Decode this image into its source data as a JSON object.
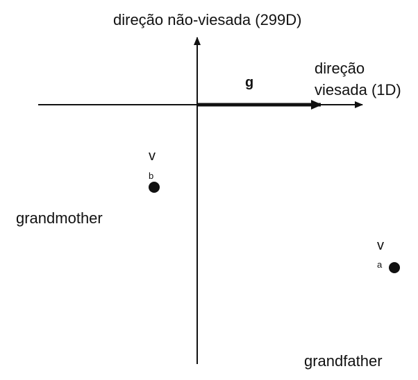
{
  "axes": {
    "vertical_label": "direção não-viesada (299D)",
    "horizontal_label_line1": "direção",
    "horizontal_label_line2": "viesada (1D)"
  },
  "vector": {
    "label": "g"
  },
  "points": {
    "b": {
      "symbol": "v",
      "subscript": "b",
      "word": "grandmother"
    },
    "a": {
      "symbol": "v",
      "subscript": "a",
      "word": "grandfather"
    }
  },
  "colors": {
    "ink": "#111111",
    "background": "#ffffff"
  }
}
